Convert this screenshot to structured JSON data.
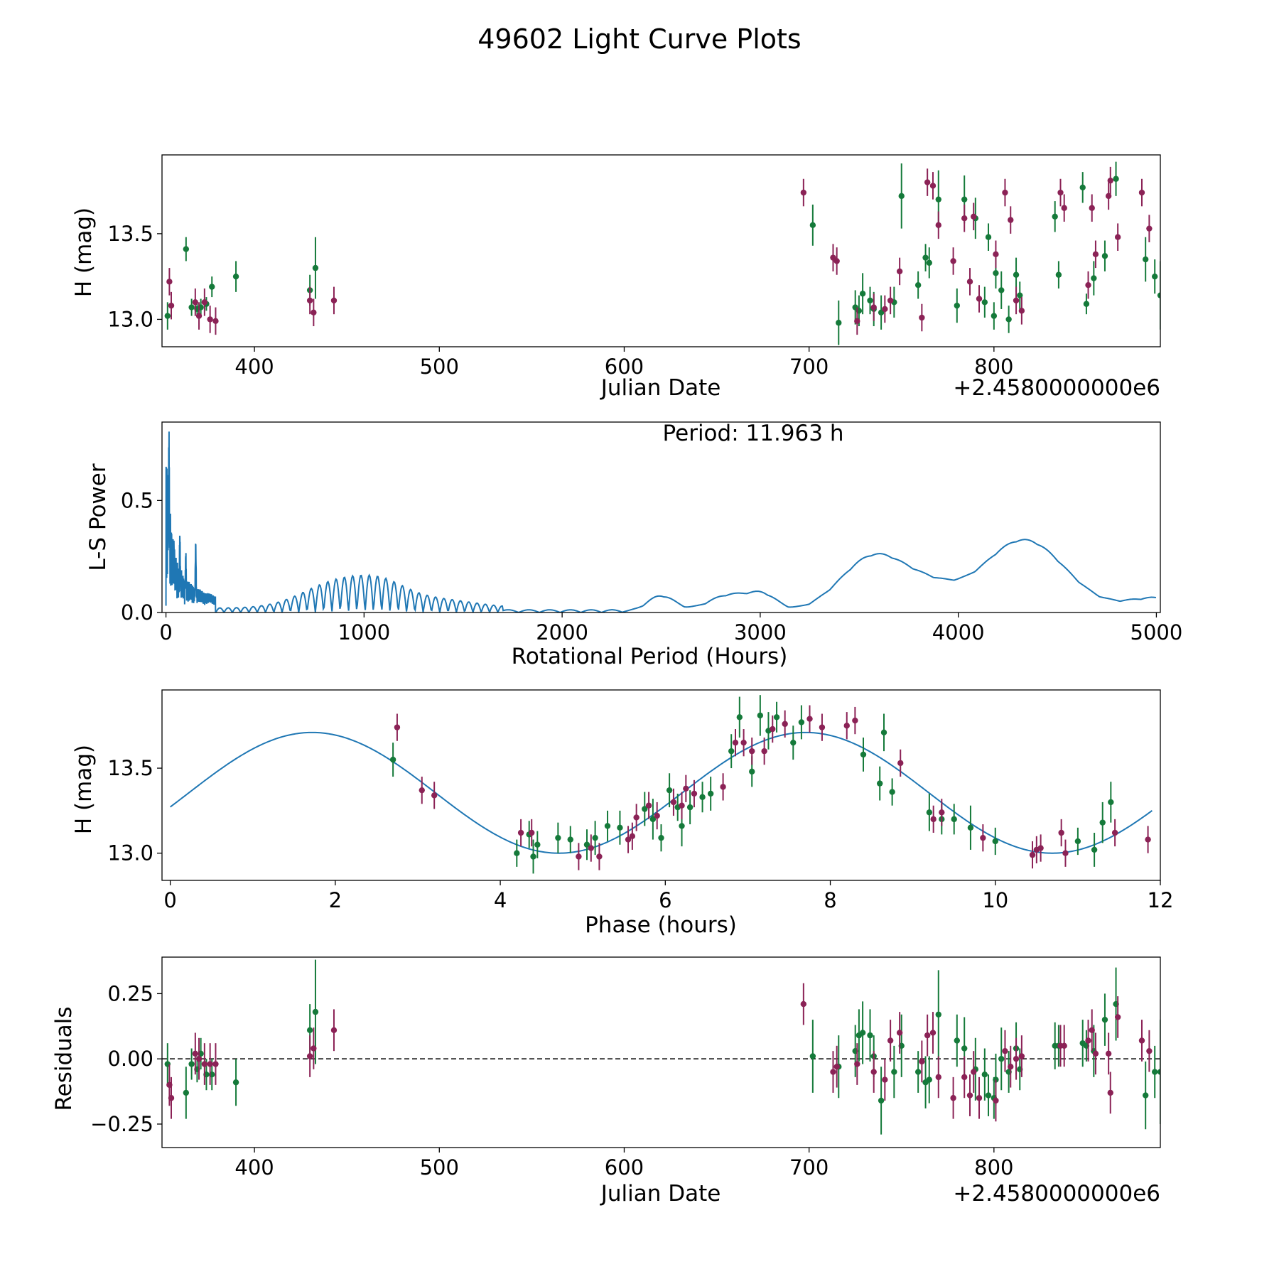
{
  "title": "49602 Light Curve Plots",
  "colors": {
    "green": "#157a3a",
    "maroon": "#8b2256",
    "curve": "#1f77b4",
    "frame": "#000000"
  },
  "charts": [
    {
      "id": "lc",
      "type": "scatter",
      "xlabel": "Julian Date",
      "ylabel": "H (mag)",
      "offset_label": "+2.4580000000e6",
      "xlim": [
        350,
        890
      ],
      "ylim": [
        12.84,
        13.96
      ],
      "xticks": [
        400,
        500,
        600,
        700,
        800
      ],
      "yticks": [
        13.0,
        13.5
      ],
      "ytick_labels": [
        "13.0",
        "13.5"
      ]
    },
    {
      "id": "ls",
      "type": "line",
      "xlabel": "Rotational Period (Hours)",
      "ylabel": "L-S Power",
      "annotation": "Period: 11.963 h",
      "xlim": [
        -20,
        5020
      ],
      "ylim": [
        0,
        0.85
      ],
      "xticks": [
        0,
        1000,
        2000,
        3000,
        4000,
        5000
      ],
      "yticks": [
        0.0,
        0.5
      ],
      "ytick_labels": [
        "0.0",
        "0.5"
      ]
    },
    {
      "id": "phase",
      "type": "scatter",
      "xlabel": "Phase (hours)",
      "ylabel": "H (mag)",
      "xlim": [
        -0.1,
        12.0
      ],
      "ylim": [
        12.84,
        13.96
      ],
      "xticks": [
        0,
        2,
        4,
        6,
        8,
        10,
        12
      ],
      "yticks": [
        13.0,
        13.5
      ],
      "ytick_labels": [
        "13.0",
        "13.5"
      ]
    },
    {
      "id": "res",
      "type": "scatter",
      "xlabel": "Julian Date",
      "ylabel": "Residuals",
      "offset_label": "+2.4580000000e6",
      "xlim": [
        350,
        890
      ],
      "ylim": [
        -0.34,
        0.39
      ],
      "xticks": [
        400,
        500,
        600,
        700,
        800
      ],
      "yticks": [
        -0.25,
        0.0,
        0.25
      ],
      "ytick_labels": [
        "−0.25",
        "0.00",
        "0.25"
      ]
    }
  ],
  "chart_data": [
    {
      "type": "scatter",
      "title": "49602 Light Curve Plots",
      "xlabel": "Julian Date",
      "ylabel": "H (mag)",
      "x_offset": "+2.4580000000e6",
      "series": [
        {
          "name": "green",
          "color": "#157a3a",
          "x": [
            353,
            363,
            366,
            369,
            371,
            374,
            377,
            390,
            430,
            433,
            702,
            716,
            725,
            727,
            729,
            733,
            735,
            739,
            746,
            750,
            759,
            763,
            765,
            770,
            780,
            784,
            790,
            795,
            797,
            800,
            801,
            804,
            808,
            812,
            814,
            833,
            835,
            848,
            850,
            854,
            860,
            866,
            882,
            887,
            890
          ],
          "y": [
            13.02,
            13.41,
            13.07,
            13.06,
            13.07,
            13.09,
            13.19,
            13.25,
            13.17,
            13.3,
            13.55,
            12.98,
            13.07,
            13.05,
            13.15,
            13.11,
            13.06,
            13.04,
            13.1,
            13.72,
            13.2,
            13.36,
            13.33,
            13.7,
            13.08,
            13.7,
            13.59,
            13.1,
            13.48,
            13.02,
            13.27,
            13.17,
            13.0,
            13.26,
            13.14,
            13.6,
            13.26,
            13.77,
            13.09,
            13.24,
            13.37,
            13.82,
            13.35,
            13.25,
            13.14
          ],
          "err": [
            0.08,
            0.07,
            0.05,
            0.04,
            0.05,
            0.04,
            0.06,
            0.09,
            0.09,
            0.18,
            0.12,
            0.13,
            0.1,
            0.09,
            0.12,
            0.08,
            0.1,
            0.1,
            0.09,
            0.19,
            0.08,
            0.08,
            0.09,
            0.17,
            0.1,
            0.14,
            0.12,
            0.09,
            0.08,
            0.08,
            0.09,
            0.11,
            0.08,
            0.1,
            0.08,
            0.09,
            0.08,
            0.09,
            0.06,
            0.1,
            0.09,
            0.1,
            0.13,
            0.1,
            0.2
          ]
        },
        {
          "name": "maroon",
          "color": "#8b2256",
          "x": [
            354,
            355,
            368,
            370,
            373,
            376,
            379,
            430,
            432,
            443,
            697,
            713,
            715,
            726,
            735,
            741,
            744,
            749,
            761,
            764,
            767,
            770,
            778,
            784,
            787,
            789,
            792,
            801,
            806,
            809,
            812,
            815,
            836,
            838,
            851,
            853,
            855,
            862,
            863,
            867,
            880,
            884
          ],
          "y": [
            13.22,
            13.08,
            13.1,
            13.02,
            13.1,
            13.0,
            12.99,
            13.11,
            13.04,
            13.11,
            13.74,
            13.36,
            13.34,
            12.99,
            13.07,
            13.06,
            13.11,
            13.28,
            13.01,
            13.8,
            13.78,
            13.55,
            13.34,
            13.59,
            13.22,
            13.6,
            13.12,
            13.38,
            13.74,
            13.58,
            13.11,
            13.05,
            13.74,
            13.65,
            13.2,
            13.65,
            13.38,
            13.72,
            13.81,
            13.48,
            13.74,
            13.53
          ]
        }
      ]
    },
    {
      "type": "line",
      "title": "Period: 11.963 h",
      "xlabel": "Rotational Period (Hours)",
      "ylabel": "L-S Power",
      "xlim": [
        -20,
        5020
      ],
      "ylim": [
        0,
        0.85
      ],
      "peaks": [
        {
          "x": 15,
          "y": 0.85
        },
        {
          "x": 40,
          "y": 0.34
        },
        {
          "x": 70,
          "y": 0.37
        },
        {
          "x": 100,
          "y": 0.28
        },
        {
          "x": 150,
          "y": 0.32
        },
        {
          "x": 880,
          "y": 0.15
        },
        {
          "x": 1100,
          "y": 0.1
        },
        {
          "x": 2500,
          "y": 0.08
        },
        {
          "x": 2900,
          "y": 0.08
        },
        {
          "x": 3580,
          "y": 0.25
        },
        {
          "x": 4330,
          "y": 0.32
        }
      ]
    },
    {
      "type": "scatter",
      "title": "",
      "xlabel": "Phase (hours)",
      "ylabel": "H (mag)",
      "model": {
        "type": "sinusoid",
        "mean": 13.355,
        "amplitude": 0.355,
        "period_hours": 5.98,
        "phase_of_max_hours": 1.72
      },
      "series": [
        {
          "name": "green",
          "color": "#157a3a",
          "x": [
            2.7,
            4.2,
            4.35,
            4.4,
            4.45,
            4.7,
            4.85,
            5.05,
            5.15,
            5.3,
            5.45,
            5.75,
            5.85,
            5.95,
            6.05,
            6.15,
            6.2,
            6.3,
            6.45,
            6.55,
            6.8,
            6.9,
            7.05,
            7.15,
            7.25,
            7.35,
            7.55,
            7.65,
            8.4,
            8.6,
            8.65,
            8.75,
            9.2,
            9.35,
            9.5,
            9.7,
            10.0,
            11.0,
            11.2,
            11.3,
            11.4
          ],
          "y": [
            13.55,
            13.0,
            13.11,
            12.98,
            13.05,
            13.09,
            13.08,
            13.05,
            13.09,
            13.16,
            13.15,
            13.26,
            13.2,
            13.09,
            13.37,
            13.27,
            13.16,
            13.27,
            13.33,
            13.35,
            13.6,
            13.8,
            13.48,
            13.81,
            13.72,
            13.8,
            13.65,
            13.77,
            13.58,
            13.41,
            13.71,
            13.36,
            13.24,
            13.2,
            13.2,
            13.15,
            13.07,
            13.07,
            13.02,
            13.18,
            13.3
          ],
          "err": [
            0.1,
            0.08,
            0.08,
            0.1,
            0.08,
            0.09,
            0.08,
            0.09,
            0.1,
            0.09,
            0.1,
            0.1,
            0.12,
            0.08,
            0.1,
            0.08,
            0.12,
            0.1,
            0.09,
            0.1,
            0.1,
            0.12,
            0.09,
            0.12,
            0.11,
            0.09,
            0.1,
            0.1,
            0.1,
            0.1,
            0.11,
            0.08,
            0.11,
            0.09,
            0.09,
            0.13,
            0.08,
            0.08,
            0.1,
            0.12,
            0.12
          ]
        },
        {
          "name": "maroon",
          "color": "#8b2256",
          "x": [
            2.75,
            3.05,
            3.2,
            4.25,
            4.38,
            4.95,
            5.1,
            5.2,
            5.55,
            5.6,
            5.65,
            5.8,
            5.9,
            6.1,
            6.2,
            6.25,
            6.35,
            6.7,
            6.85,
            6.95,
            7.05,
            7.2,
            7.3,
            7.45,
            7.75,
            7.9,
            8.2,
            8.3,
            8.85,
            9.25,
            9.35,
            9.85,
            10.45,
            10.5,
            10.55,
            10.8,
            10.85,
            11.45,
            11.85
          ],
          "y": [
            13.74,
            13.37,
            13.34,
            13.12,
            13.12,
            12.98,
            13.03,
            12.98,
            13.08,
            13.1,
            13.21,
            13.28,
            13.22,
            13.3,
            13.28,
            13.38,
            13.35,
            13.39,
            13.65,
            13.65,
            13.6,
            13.6,
            13.73,
            13.76,
            13.79,
            13.74,
            13.75,
            13.78,
            13.53,
            13.2,
            13.24,
            13.09,
            12.99,
            13.02,
            13.03,
            13.12,
            13.0,
            13.12,
            13.08
          ]
        }
      ]
    },
    {
      "type": "scatter",
      "title": "",
      "xlabel": "Julian Date",
      "ylabel": "Residuals",
      "x_offset": "+2.4580000000e6",
      "reference_line": 0,
      "series": [
        {
          "name": "green",
          "color": "#157a3a",
          "x": [
            353,
            363,
            366,
            369,
            371,
            374,
            377,
            390,
            430,
            433,
            702,
            716,
            725,
            727,
            729,
            733,
            735,
            739,
            746,
            750,
            759,
            763,
            765,
            770,
            780,
            784,
            790,
            795,
            797,
            800,
            801,
            804,
            808,
            812,
            814,
            833,
            835,
            848,
            850,
            854,
            860,
            866,
            882,
            887,
            890
          ],
          "y": [
            -0.02,
            -0.13,
            -0.02,
            -0.04,
            0.02,
            -0.06,
            -0.06,
            -0.09,
            0.11,
            0.18,
            0.01,
            -0.03,
            0.03,
            0.09,
            0.1,
            0.09,
            0.01,
            -0.16,
            -0.05,
            0.05,
            -0.05,
            -0.09,
            -0.08,
            0.17,
            0.07,
            0.04,
            -0.04,
            -0.06,
            -0.14,
            -0.15,
            -0.08,
            0.0,
            -0.05,
            0.04,
            -0.04,
            0.05,
            0.05,
            0.06,
            0.05,
            0.03,
            0.15,
            0.21,
            -0.14,
            -0.05,
            -0.05
          ],
          "err": [
            0.08,
            0.1,
            0.06,
            0.05,
            0.06,
            0.06,
            0.06,
            0.09,
            0.1,
            0.2,
            0.14,
            0.12,
            0.1,
            0.1,
            0.12,
            0.1,
            0.08,
            0.13,
            0.1,
            0.12,
            0.08,
            0.1,
            0.09,
            0.17,
            0.1,
            0.12,
            0.12,
            0.1,
            0.08,
            0.08,
            0.1,
            0.12,
            0.08,
            0.1,
            0.08,
            0.09,
            0.08,
            0.09,
            0.06,
            0.1,
            0.1,
            0.14,
            0.13,
            0.1,
            0.2
          ]
        },
        {
          "name": "maroon",
          "color": "#8b2256",
          "x": [
            354,
            355,
            368,
            370,
            373,
            376,
            379,
            430,
            432,
            443,
            697,
            713,
            715,
            726,
            735,
            741,
            744,
            749,
            761,
            764,
            767,
            770,
            778,
            784,
            787,
            789,
            792,
            801,
            806,
            809,
            812,
            815,
            836,
            838,
            851,
            853,
            855,
            862,
            863,
            867,
            880,
            884
          ],
          "y": [
            -0.1,
            -0.15,
            0.02,
            0.0,
            -0.02,
            -0.02,
            -0.02,
            0.01,
            0.04,
            0.11,
            0.21,
            -0.05,
            -0.03,
            -0.02,
            -0.05,
            -0.08,
            0.07,
            0.1,
            -0.01,
            0.09,
            0.1,
            -0.07,
            -0.15,
            -0.07,
            -0.14,
            -0.05,
            -0.15,
            -0.16,
            0.03,
            -0.03,
            0.0,
            0.01,
            0.05,
            0.05,
            0.07,
            0.11,
            0.02,
            0.02,
            -0.13,
            0.16,
            0.07,
            0.03
          ]
        }
      ]
    }
  ]
}
